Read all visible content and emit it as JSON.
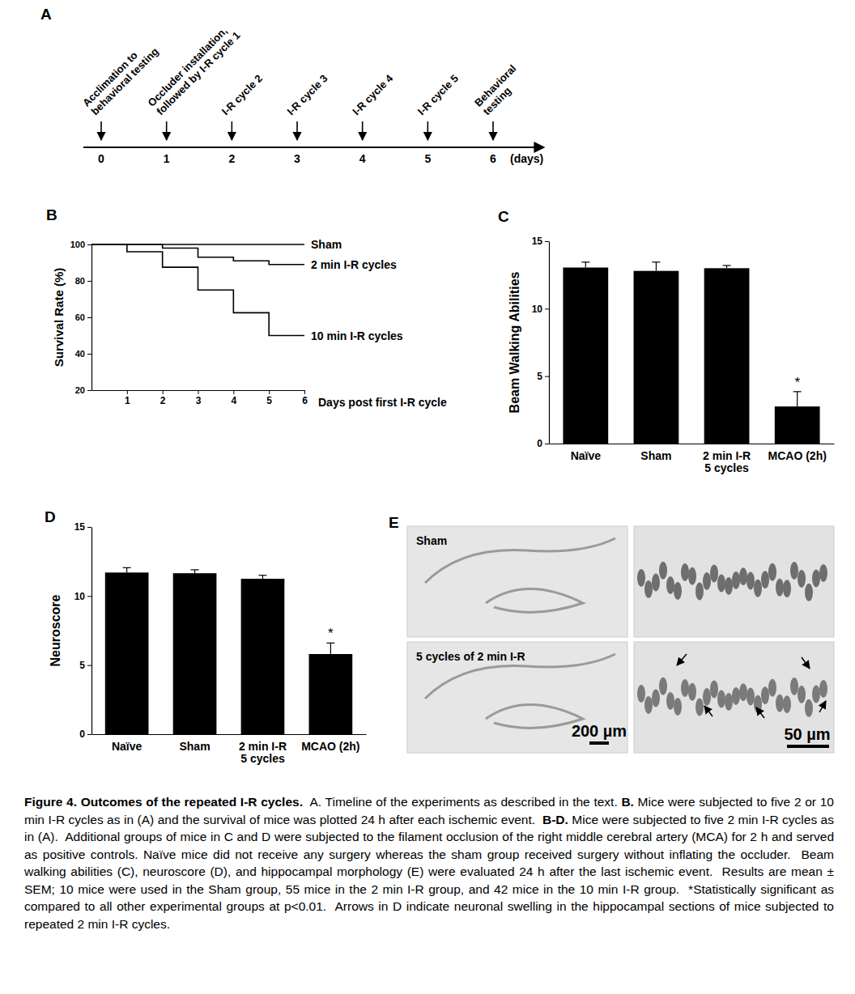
{
  "timeline": {
    "title": "A",
    "days": [
      0,
      1,
      2,
      3,
      4,
      5,
      6
    ],
    "axis_label": "(days)",
    "events": [
      {
        "day": 0,
        "label": [
          "Acclimation to",
          "behavioral testing"
        ]
      },
      {
        "day": 1,
        "label": [
          "Occluder installation,",
          "followed by I-R cycle 1"
        ]
      },
      {
        "day": 2,
        "label": [
          "I-R cycle 2"
        ]
      },
      {
        "day": 3,
        "label": [
          "I-R cycle 3"
        ]
      },
      {
        "day": 4,
        "label": [
          "I-R cycle 4"
        ]
      },
      {
        "day": 5,
        "label": [
          "I-R cycle 5"
        ]
      },
      {
        "day": 6,
        "label": [
          "Behavioral",
          "testing"
        ]
      }
    ]
  },
  "chart_data": [
    {
      "type": "line",
      "title": "B",
      "line_style": "step",
      "x": [
        0,
        1,
        2,
        3,
        4,
        5,
        6
      ],
      "xlim": [
        0,
        6
      ],
      "xticks": [
        1,
        2,
        3,
        4,
        5,
        6
      ],
      "xlabel": "Days post first I-R cycle",
      "ylabel": "Survival Rate (%)",
      "ylim": [
        20,
        100
      ],
      "yticks": [
        20,
        40,
        60,
        80,
        100
      ],
      "series": [
        {
          "name": "Sham",
          "color": "#000000",
          "values": [
            100,
            100,
            100,
            100,
            100,
            100,
            100
          ]
        },
        {
          "name": "2 min I-R cycles",
          "color": "#000000",
          "values": [
            100,
            100,
            98,
            93,
            91,
            89,
            89
          ]
        },
        {
          "name": "10 min I-R cycles",
          "color": "#000000",
          "values": [
            100,
            96,
            87.5,
            75,
            62.5,
            50,
            50
          ]
        }
      ]
    },
    {
      "type": "bar",
      "title": "C",
      "color": "#000000",
      "categories": [
        "Naïve",
        "Sham",
        "2 min I-R\n5 cycles",
        "MCAO (2h)"
      ],
      "values": [
        13.05,
        12.8,
        13.0,
        2.75
      ],
      "errors": [
        0.4,
        0.65,
        0.2,
        1.1
      ],
      "ylabel": "Beam Walking Abilities",
      "ylim": [
        0,
        15
      ],
      "yticks": [
        0,
        5,
        10,
        15
      ],
      "annotations": [
        {
          "text": "*",
          "category": 3
        }
      ]
    },
    {
      "type": "bar",
      "title": "D",
      "color": "#000000",
      "categories": [
        "Naïve",
        "Sham",
        "2 min I-R\n5 cycles",
        "MCAO (2h)"
      ],
      "values": [
        11.7,
        11.65,
        11.25,
        5.8
      ],
      "errors": [
        0.35,
        0.25,
        0.25,
        0.8
      ],
      "ylabel": "Neuroscore",
      "ylim": [
        0,
        15
      ],
      "yticks": [
        0,
        5,
        10,
        15
      ],
      "annotations": [
        {
          "text": "*",
          "category": 3
        }
      ]
    }
  ],
  "micrographs": {
    "title": "E",
    "rows": [
      "Sham",
      "5 cycles of 2 min I-R"
    ],
    "scale_bars": [
      "200 µm",
      "50 µm"
    ]
  },
  "caption": [
    {
      "text": "Figure 4. Outcomes of the repeated I-R cycles.",
      "bold": true
    },
    {
      "text": "  A. Timeline of the experiments as described in the text. ",
      "bold": false
    },
    {
      "text": "B.",
      "bold": true
    },
    {
      "text": " Mice were subjected to five 2 or 10 min I-R cycles as in (A) and the survival of mice was plotted 24 h after each ischemic event.  ",
      "bold": false
    },
    {
      "text": "B-D.",
      "bold": true
    },
    {
      "text": " Mice were subjected to five 2 min I-R cycles as in (A).  Additional groups of mice in C and D were subjected to the filament occlusion of the right middle cerebral artery (MCA) for 2 h and served as positive controls. Naïve mice did not receive any surgery whereas the sham group received surgery without inflating the occluder.  Beam walking abilities (C), neuroscore (D), and hippocampal morphology (E) were evaluated 24 h after the last ischemic event.  Results are mean ± SEM; 10 mice were used in the Sham group, 55 mice in the 2 min I-R group, and 42 mice in the 10 min I-R group.  *Statistically significant as compared to all other experimental groups at p<0.01.  Arrows in D indicate neuronal swelling in the hippocampal sections of mice subjected to repeated 2 min I-R cycles.",
      "bold": false
    }
  ]
}
